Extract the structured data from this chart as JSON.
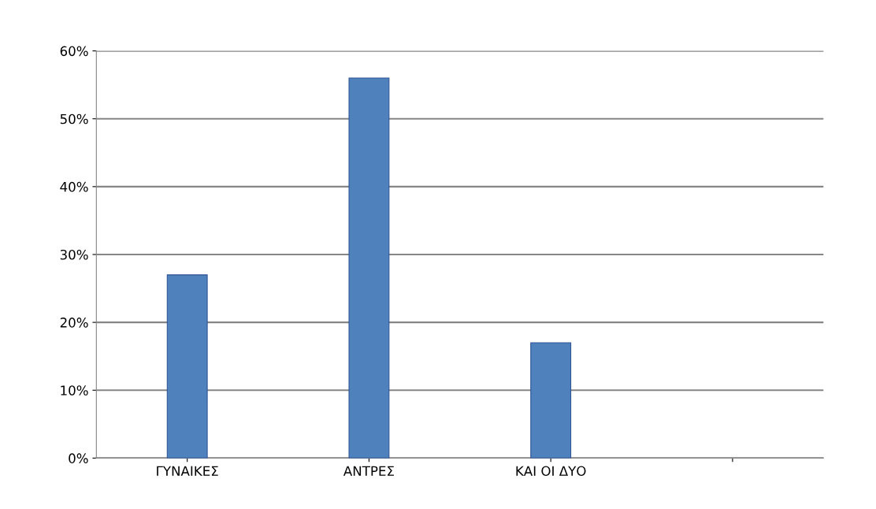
{
  "chart_data": {
    "type": "bar",
    "categories": [
      "ΓΥΝΑΙΚΕΣ",
      "ΑΝΤΡΕΣ",
      "ΚΑΙ ΟΙ ΔΥΟ",
      null
    ],
    "values": [
      27,
      56,
      17,
      null
    ],
    "color": "#4f81bd",
    "ylim": [
      0,
      60
    ],
    "yticks": [
      {
        "value": 0,
        "label": "0%"
      },
      {
        "value": 10,
        "label": "10%"
      },
      {
        "value": 20,
        "label": "20%"
      },
      {
        "value": 30,
        "label": "30%"
      },
      {
        "value": 40,
        "label": "40%"
      },
      {
        "value": 50,
        "label": "50%"
      },
      {
        "value": 60,
        "label": "60%"
      }
    ],
    "grid": "y"
  }
}
